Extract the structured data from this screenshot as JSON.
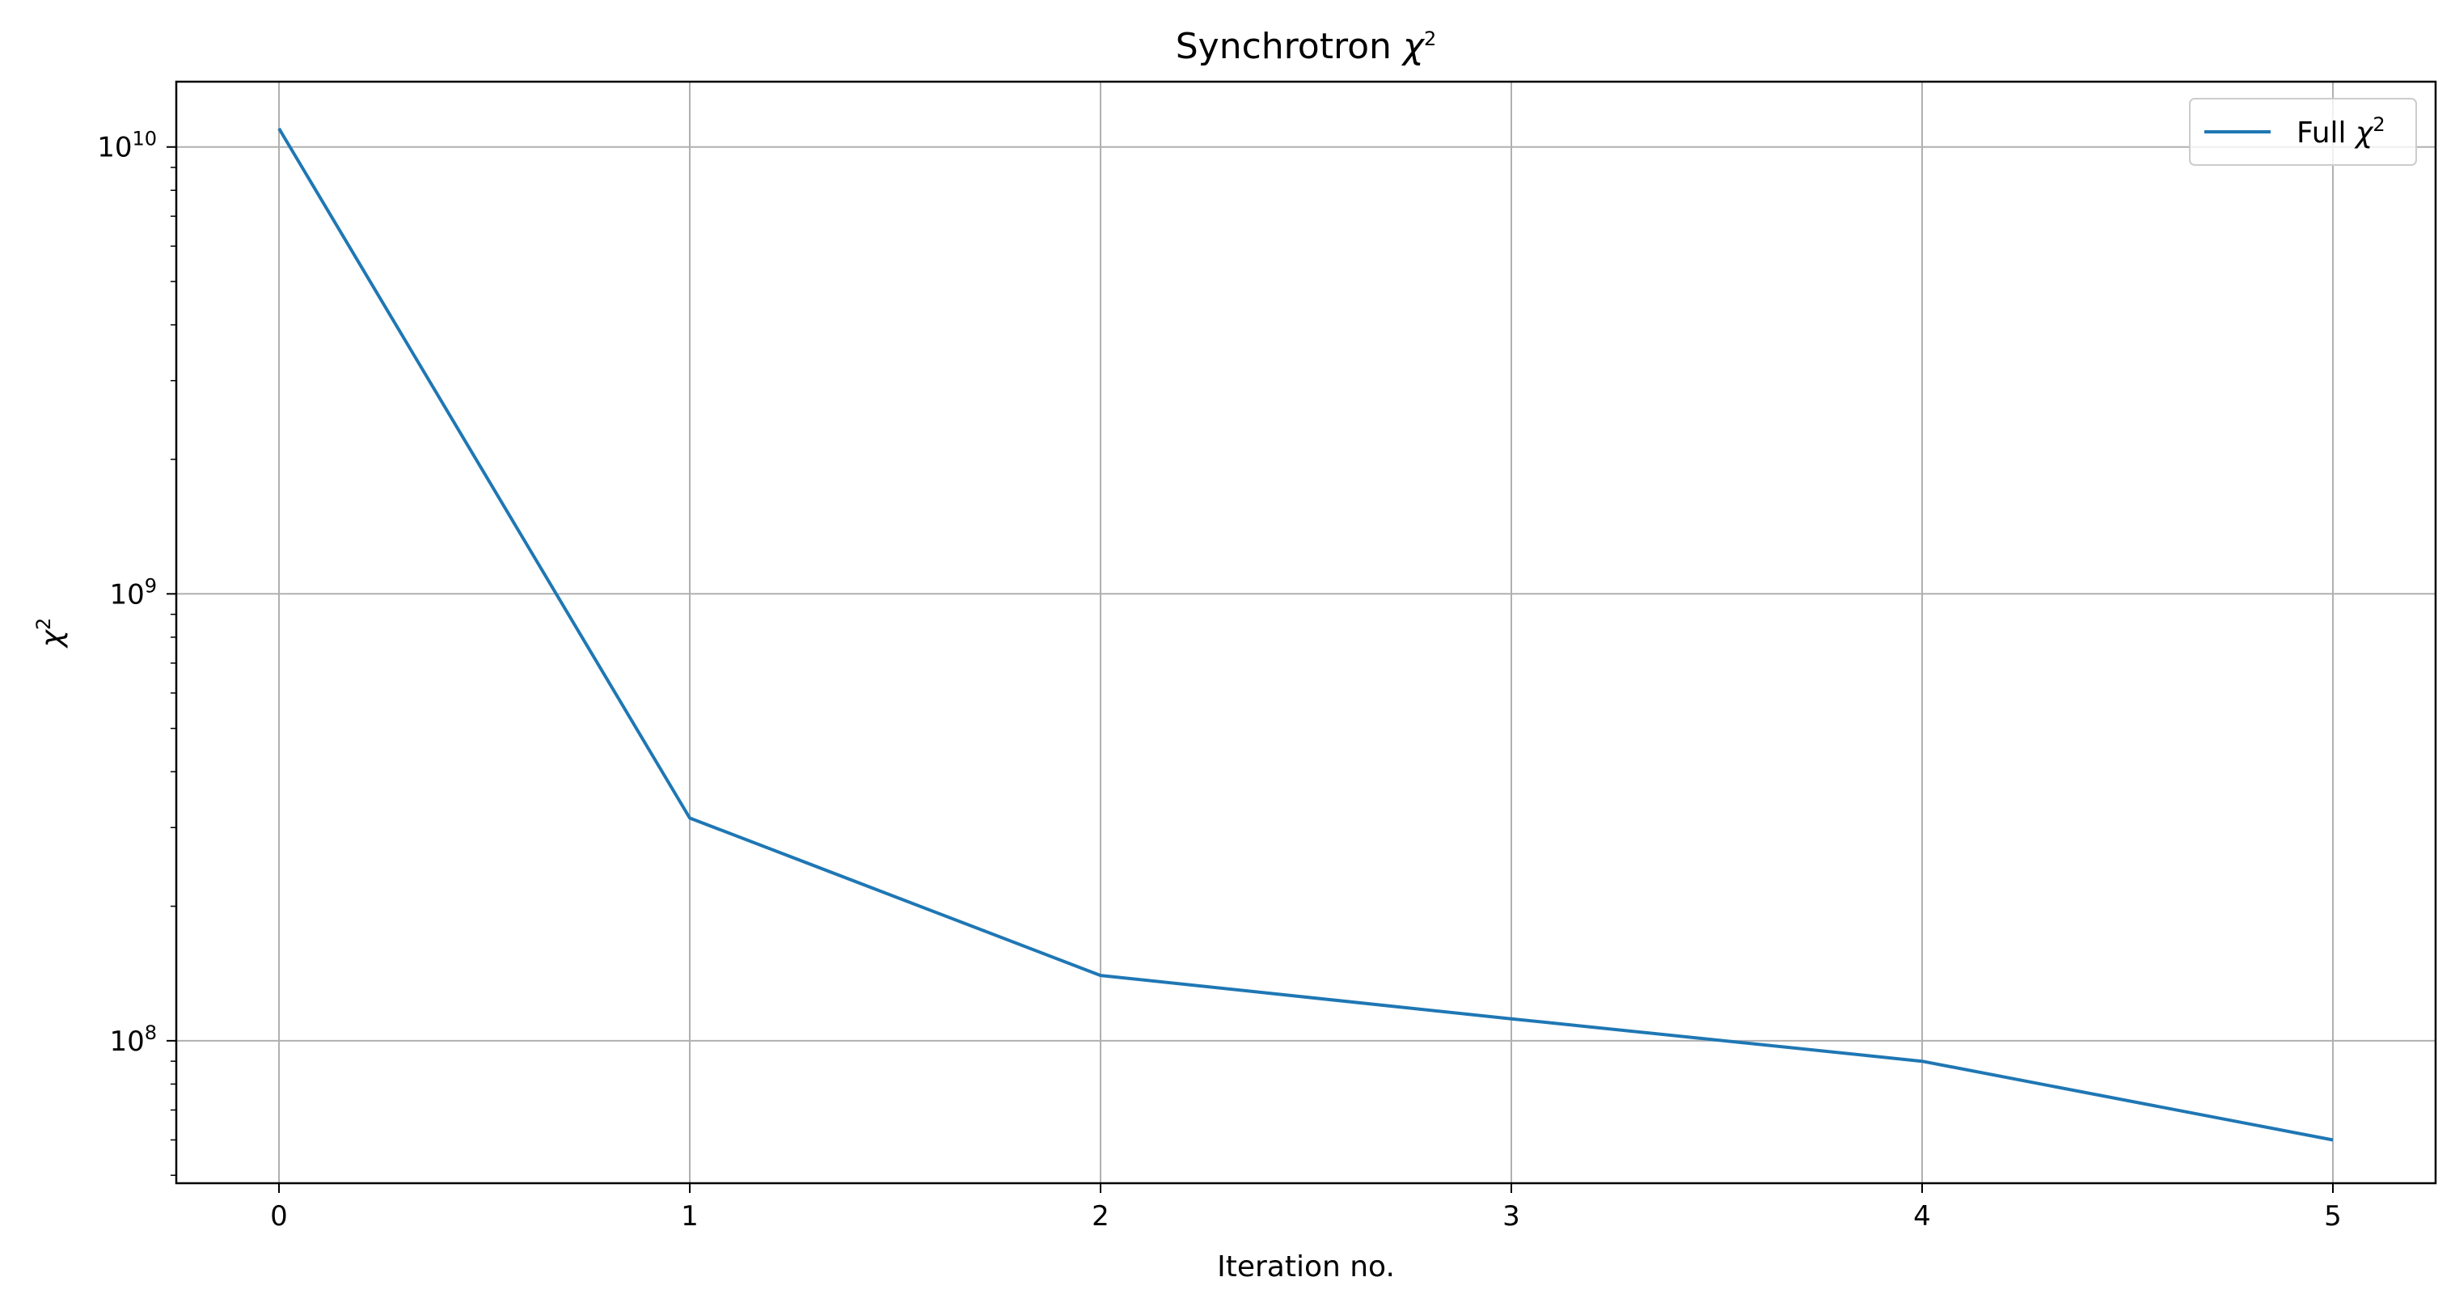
{
  "chart_data": {
    "type": "line",
    "title": "Synchrotron χ²",
    "title_parts": {
      "text": "Synchrotron ",
      "symbol": "χ",
      "sup": "2"
    },
    "xlabel": "Iteration no.",
    "ylabel": "χ²",
    "ylabel_parts": {
      "symbol": "χ",
      "sup": "2"
    },
    "yscale": "log",
    "xlim": [
      -0.25,
      5.25
    ],
    "ylim": [
      48000000,
      14000000000
    ],
    "x_ticks": [
      0,
      1,
      2,
      3,
      4,
      5
    ],
    "x_tick_labels": [
      "0",
      "1",
      "2",
      "3",
      "4",
      "5"
    ],
    "y_ticks": [
      {
        "value": 100000000,
        "base": "10",
        "exp": "8"
      },
      {
        "value": 1000000000,
        "base": "10",
        "exp": "9"
      },
      {
        "value": 10000000000,
        "base": "10",
        "exp": "10"
      }
    ],
    "grid": true,
    "legend_position": "upper right",
    "series": [
      {
        "name": "Full χ²",
        "name_parts": {
          "text": "Full ",
          "symbol": "χ",
          "sup": "2"
        },
        "color": "#1f77b4",
        "x": [
          0,
          1,
          2,
          3,
          4,
          5
        ],
        "y": [
          11000000000,
          315000000,
          140000000,
          112000000,
          90000000,
          60000000
        ]
      }
    ]
  }
}
